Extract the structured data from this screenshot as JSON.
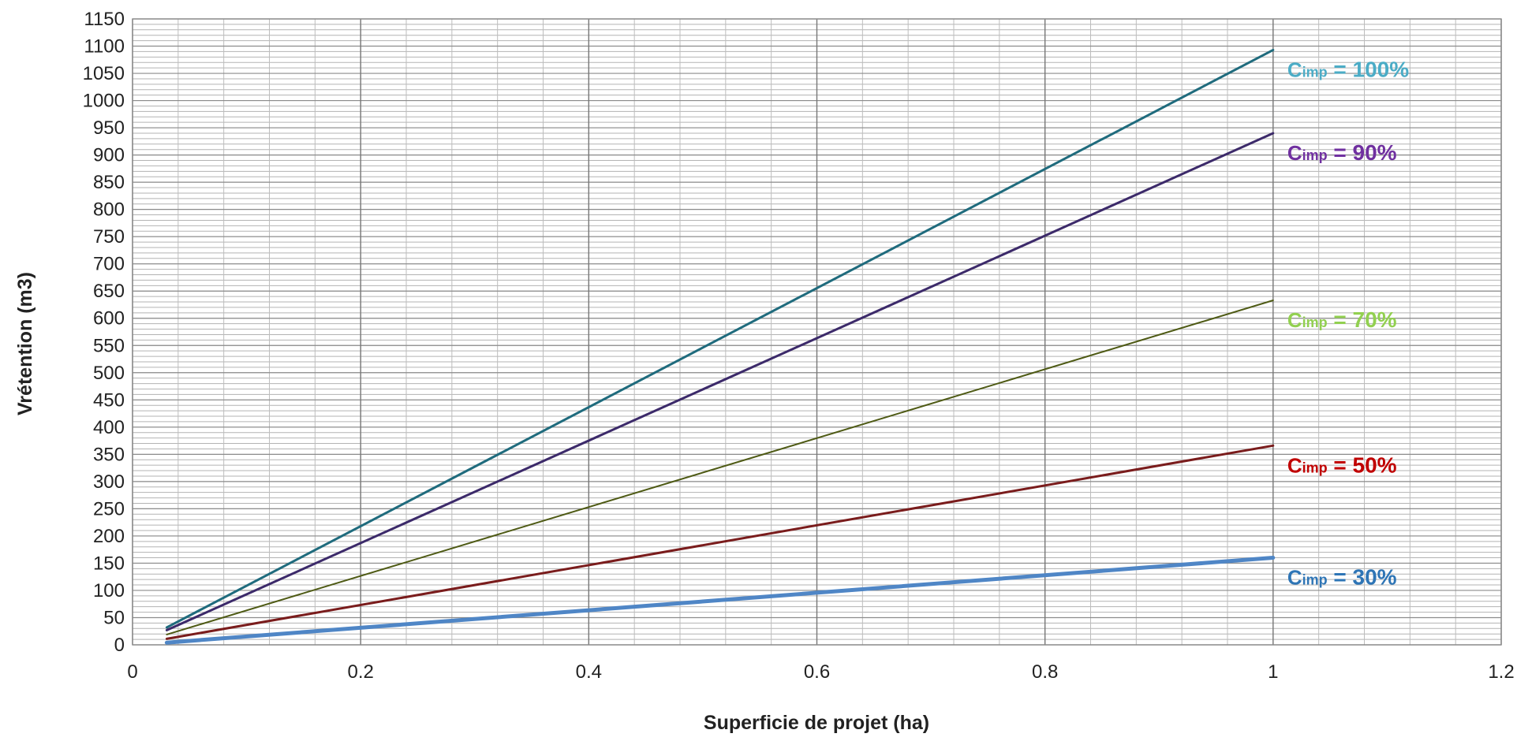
{
  "chart_data": {
    "type": "line",
    "title": "",
    "xlabel": "Superficie de projet (ha)",
    "ylabel": "Vrétention (m3)",
    "xlim": [
      0,
      1.2
    ],
    "ylim": [
      0,
      1150
    ],
    "xticks": [
      0,
      0.2,
      0.4,
      0.6,
      0.8,
      1,
      1.2
    ],
    "yticks": [
      0,
      50,
      100,
      150,
      200,
      250,
      300,
      350,
      400,
      450,
      500,
      550,
      600,
      650,
      700,
      750,
      800,
      850,
      900,
      950,
      1000,
      1050,
      1100,
      1150
    ],
    "grid": true,
    "legend": "none",
    "series": [
      {
        "name": "Cimp = 100%",
        "label_main": "C",
        "label_sub": "imp",
        "label_rest": " = 100%",
        "color": "#1f6b7d",
        "label_color": "#4bacc6",
        "width": 3,
        "x": [
          0.03,
          1
        ],
        "values": [
          32,
          1093
        ]
      },
      {
        "name": "Cimp = 90%",
        "label_main": "C",
        "label_sub": "imp",
        "label_rest": " = 90%",
        "color": "#3c2a6a",
        "label_color": "#7030a0",
        "width": 3,
        "x": [
          0.03,
          1
        ],
        "values": [
          27,
          940
        ]
      },
      {
        "name": "Cimp = 70%",
        "label_main": "C",
        "label_sub": "imp",
        "label_rest": " = 70%",
        "color": "#4e5a14",
        "label_color": "#92d050",
        "width": 2,
        "x": [
          0.03,
          1
        ],
        "values": [
          19,
          633
        ]
      },
      {
        "name": "Cimp = 50%",
        "label_main": "C",
        "label_sub": "imp",
        "label_rest": " = 50%",
        "color": "#7a1c1c",
        "label_color": "#c00000",
        "width": 3,
        "x": [
          0.03,
          1
        ],
        "values": [
          11,
          366
        ]
      },
      {
        "name": "Cimp = 30%",
        "label_main": "C",
        "label_sub": "imp",
        "label_rest": " = 30%",
        "color": "#4f86c6",
        "label_color": "#2e75b6",
        "width": 5,
        "x": [
          0.03,
          1
        ],
        "values": [
          4,
          160
        ]
      }
    ]
  }
}
